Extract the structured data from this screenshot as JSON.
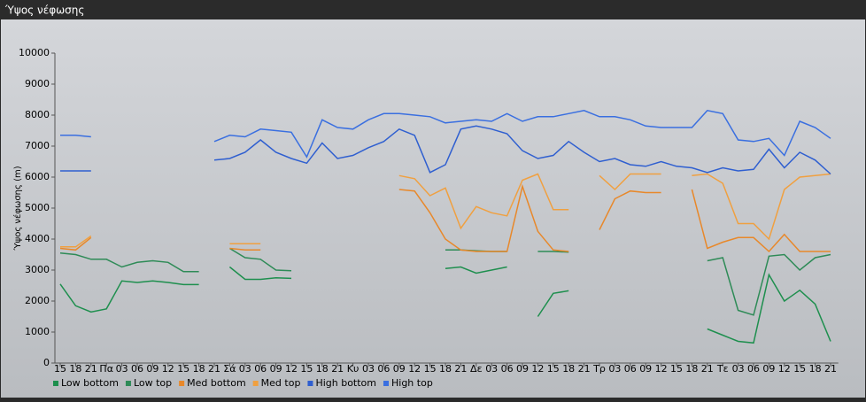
{
  "chart_data": {
    "type": "line",
    "title": "Ύψος νέφωσης",
    "y_label": "Ύψος νέφωσης (m)",
    "categories": [
      "15",
      "18",
      "21",
      "Πα",
      "03",
      "06",
      "09",
      "12",
      "15",
      "18",
      "21",
      "Σά",
      "03",
      "06",
      "09",
      "12",
      "15",
      "18",
      "21",
      "Κυ",
      "03",
      "06",
      "09",
      "12",
      "15",
      "18",
      "21",
      "Δε",
      "03",
      "06",
      "09",
      "12",
      "15",
      "18",
      "21",
      "Τρ",
      "03",
      "06",
      "09",
      "12",
      "15",
      "18",
      "21",
      "Τε",
      "03",
      "06",
      "09",
      "12",
      "15",
      "18",
      "21"
    ],
    "ylim": [
      0,
      10000
    ],
    "yticks": [
      0,
      1000,
      2000,
      3000,
      4000,
      5000,
      6000,
      7000,
      8000,
      9000,
      10000
    ],
    "series": [
      {
        "name": "Low bottom",
        "color": "#1e8f4e",
        "values": [
          2550,
          1850,
          1650,
          1750,
          2650,
          2600,
          2650,
          2600,
          2530,
          2530,
          null,
          3100,
          2700,
          2700,
          2750,
          2730,
          null,
          null,
          null,
          null,
          null,
          null,
          null,
          null,
          null,
          3050,
          3100,
          2900,
          3000,
          3100,
          null,
          1500,
          2250,
          2330,
          null,
          null,
          null,
          null,
          null,
          null,
          null,
          null,
          1100,
          900,
          700,
          650,
          2850,
          2000,
          2350,
          1900,
          700
        ]
      },
      {
        "name": "Low top",
        "color": "#2e8b57",
        "values": [
          3550,
          3500,
          3350,
          3350,
          3100,
          3250,
          3300,
          3250,
          2950,
          2950,
          null,
          3700,
          3400,
          3350,
          3000,
          2980,
          null,
          null,
          null,
          null,
          null,
          null,
          null,
          null,
          null,
          3650,
          3650,
          3620,
          3600,
          3600,
          null,
          3600,
          3600,
          3580,
          null,
          null,
          null,
          null,
          null,
          null,
          null,
          null,
          3300,
          3400,
          1700,
          1550,
          3450,
          3500,
          3000,
          3400,
          3500
        ]
      },
      {
        "name": "Med bottom",
        "color": "#e8882a",
        "values": [
          3700,
          3650,
          4050,
          null,
          null,
          null,
          null,
          null,
          null,
          null,
          null,
          3700,
          3650,
          3650,
          null,
          null,
          null,
          null,
          null,
          null,
          null,
          null,
          5600,
          5550,
          4850,
          4000,
          3650,
          3600,
          3600,
          3600,
          5700,
          4250,
          3650,
          3600,
          null,
          4300,
          5300,
          5550,
          5500,
          5500,
          null,
          5600,
          3700,
          3900,
          4050,
          4050,
          3600,
          4150,
          3600,
          3600,
          3600
        ]
      },
      {
        "name": "Med top",
        "color": "#f0a040",
        "values": [
          3750,
          3750,
          4100,
          null,
          null,
          null,
          null,
          null,
          null,
          null,
          null,
          3850,
          3850,
          3850,
          null,
          null,
          null,
          null,
          null,
          null,
          null,
          null,
          6050,
          5950,
          5400,
          5650,
          4350,
          5050,
          4850,
          4750,
          5900,
          6100,
          4950,
          4950,
          null,
          6050,
          5600,
          6100,
          6100,
          6100,
          null,
          6050,
          6100,
          5800,
          4500,
          4500,
          4000,
          5600,
          6000,
          6050,
          6100
        ]
      },
      {
        "name": "High bottom",
        "color": "#2f5fd0",
        "values": [
          6200,
          6200,
          6200,
          null,
          null,
          null,
          null,
          null,
          null,
          null,
          6550,
          6600,
          6800,
          7200,
          6800,
          6600,
          6450,
          7100,
          6600,
          6700,
          6950,
          7150,
          7550,
          7350,
          6150,
          6400,
          7550,
          7650,
          7550,
          7400,
          6850,
          6600,
          6700,
          7150,
          6800,
          6500,
          6600,
          6400,
          6350,
          6500,
          6350,
          6300,
          6150,
          6300,
          6200,
          6250,
          6900,
          6300,
          6800,
          6550,
          6100
        ]
      },
      {
        "name": "High top",
        "color": "#3a6fe0",
        "values": [
          7350,
          7350,
          7300,
          null,
          null,
          null,
          null,
          null,
          null,
          null,
          7150,
          7350,
          7300,
          7550,
          7500,
          7450,
          6650,
          7850,
          7600,
          7550,
          7850,
          8050,
          8050,
          8000,
          7950,
          7750,
          7800,
          7850,
          7800,
          8050,
          7800,
          7950,
          7950,
          8050,
          8150,
          7950,
          7950,
          7850,
          7650,
          7600,
          7600,
          7600,
          8150,
          8050,
          7200,
          7150,
          7250,
          6700,
          7800,
          7600,
          7250
        ]
      }
    ]
  }
}
